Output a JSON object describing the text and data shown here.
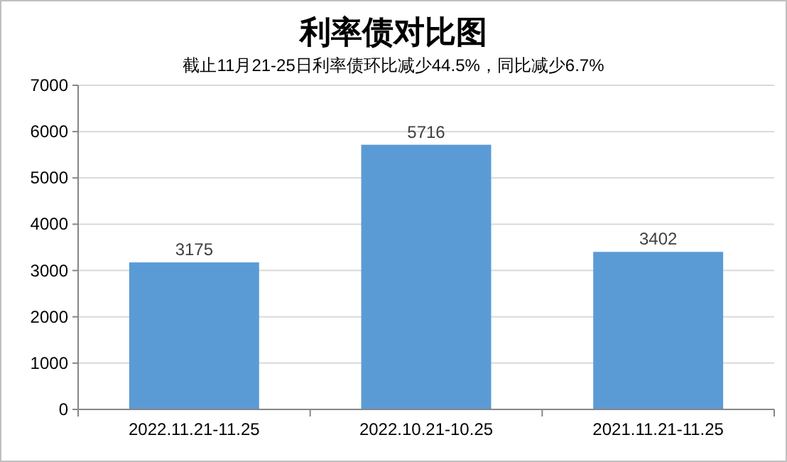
{
  "chart_data": {
    "type": "bar",
    "title": "利率债对比图",
    "subtitle": "截止11月21-25日利率债环比减少44.5%，同比减少6.7%",
    "categories": [
      "2022.11.21-11.25",
      "2022.10.21-10.25",
      "2021.11.21-11.25"
    ],
    "values": [
      3175,
      5716,
      3402
    ],
    "color": "#5b9bd5",
    "ylim": [
      0,
      7000
    ],
    "yticks": [
      0,
      1000,
      2000,
      3000,
      4000,
      5000,
      6000,
      7000
    ],
    "grid": "y",
    "data_labels": true
  }
}
